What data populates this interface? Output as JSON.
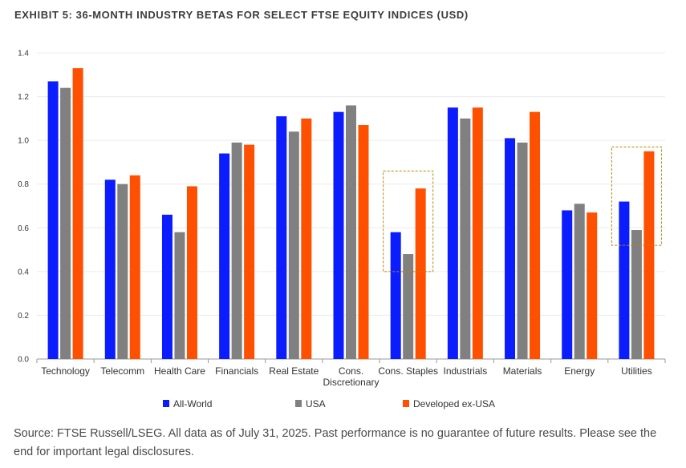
{
  "title": "EXHIBIT 5: 36-MONTH INDUSTRY BETAS FOR SELECT FTSE EQUITY INDICES (USD)",
  "source": "Source: FTSE Russell/LSEG. All data as of July 31, 2025. Past performance is no guarantee of future results. Please see the end for important legal disclosures.",
  "chart_data": {
    "type": "bar",
    "title": "EXHIBIT 5: 36-MONTH INDUSTRY BETAS FOR SELECT FTSE EQUITY INDICES (USD)",
    "xlabel": "",
    "ylabel": "",
    "ylim": [
      0,
      1.4
    ],
    "yticks": [
      0.0,
      0.2,
      0.4,
      0.6,
      0.8,
      1.0,
      1.2,
      1.4
    ],
    "ytick_labels": [
      "0.0",
      "0.2",
      "0.4",
      "0.6",
      "0.8",
      "1.0",
      "1.2",
      "1.4"
    ],
    "grid": true,
    "legend_position": "bottom",
    "categories": [
      [
        "Technology"
      ],
      [
        "Telecomm"
      ],
      [
        "Health Care"
      ],
      [
        "Financials"
      ],
      [
        "Real Estate"
      ],
      [
        "Cons.",
        "Discretionary"
      ],
      [
        "Cons. Staples"
      ],
      [
        "Industrials"
      ],
      [
        "Materials"
      ],
      [
        "Energy"
      ],
      [
        "Utilities"
      ]
    ],
    "series": [
      {
        "name": "All-World",
        "color": "#0b1cff",
        "values": [
          1.27,
          0.82,
          0.66,
          0.94,
          1.11,
          1.13,
          0.58,
          1.15,
          1.01,
          0.68,
          0.72
        ]
      },
      {
        "name": "USA",
        "color": "#808080",
        "values": [
          1.24,
          0.8,
          0.58,
          0.99,
          1.04,
          1.16,
          0.48,
          1.1,
          0.99,
          0.71,
          0.59
        ]
      },
      {
        "name": "Developed ex-USA",
        "color": "#fe5000",
        "values": [
          1.33,
          0.84,
          0.79,
          0.98,
          1.1,
          1.07,
          0.78,
          1.15,
          1.13,
          0.67,
          0.95
        ]
      }
    ],
    "highlights": [
      {
        "category": "Cons. Staples",
        "from": 0.4,
        "to": 0.86,
        "style": "dashed",
        "color": "#b8860b"
      },
      {
        "category": "Utilities",
        "from": 0.52,
        "to": 0.97,
        "style": "dashed",
        "color": "#b8860b"
      }
    ]
  }
}
